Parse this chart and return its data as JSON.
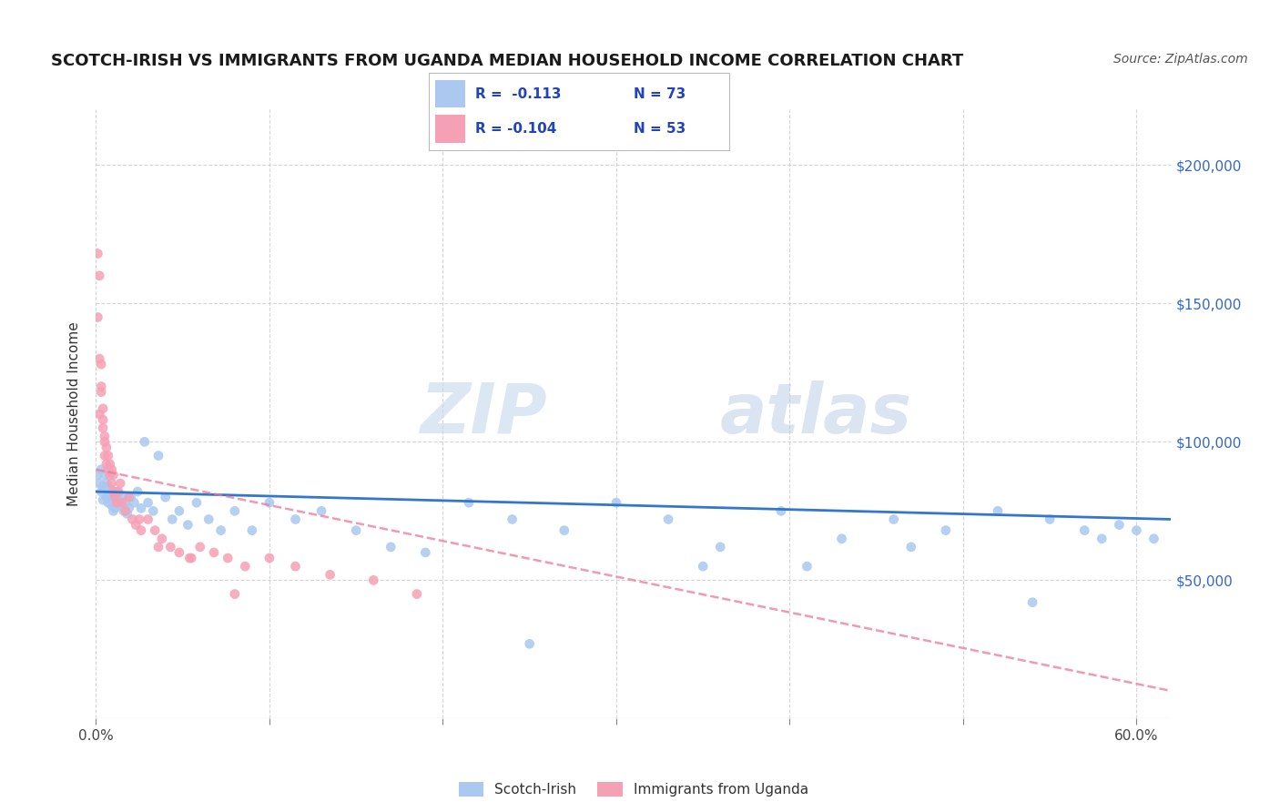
{
  "title": "SCOTCH-IRISH VS IMMIGRANTS FROM UGANDA MEDIAN HOUSEHOLD INCOME CORRELATION CHART",
  "source": "Source: ZipAtlas.com",
  "ylabel": "Median Household Income",
  "y_ticks": [
    50000,
    100000,
    150000,
    200000
  ],
  "y_tick_labels": [
    "$50,000",
    "$100,000",
    "$150,000",
    "$200,000"
  ],
  "xlim": [
    0.0,
    0.62
  ],
  "ylim": [
    0,
    220000
  ],
  "watermark_zip": "ZIP",
  "watermark_atlas": "atlas",
  "legend_r1": "R =  -0.113",
  "legend_n1": "N = 73",
  "legend_r2": "R = -0.104",
  "legend_n2": "N = 53",
  "series1_color": "#aac8f0",
  "series2_color": "#f5a0b5",
  "trendline1_color": "#3377cc",
  "trendline2_color": "#ee7799",
  "background_color": "#ffffff",
  "grid_color": "#cccccc",
  "scotch_irish_x": [
    0.001,
    0.002,
    0.003,
    0.003,
    0.004,
    0.004,
    0.005,
    0.005,
    0.006,
    0.006,
    0.007,
    0.007,
    0.008,
    0.008,
    0.009,
    0.009,
    0.01,
    0.01,
    0.011,
    0.011,
    0.012,
    0.013,
    0.014,
    0.015,
    0.016,
    0.017,
    0.018,
    0.019,
    0.02,
    0.022,
    0.024,
    0.026,
    0.028,
    0.03,
    0.033,
    0.036,
    0.04,
    0.044,
    0.048,
    0.053,
    0.058,
    0.065,
    0.072,
    0.08,
    0.09,
    0.1,
    0.115,
    0.13,
    0.15,
    0.17,
    0.19,
    0.215,
    0.24,
    0.27,
    0.3,
    0.33,
    0.36,
    0.395,
    0.43,
    0.46,
    0.49,
    0.52,
    0.55,
    0.57,
    0.58,
    0.59,
    0.6,
    0.61,
    0.25,
    0.35,
    0.41,
    0.47,
    0.54
  ],
  "scotch_irish_y": [
    88000,
    85000,
    90000,
    82000,
    84000,
    79000,
    83000,
    88000,
    80000,
    85000,
    82000,
    78000,
    83000,
    80000,
    77000,
    81000,
    75000,
    78000,
    76000,
    80000,
    82000,
    79000,
    77000,
    80000,
    75000,
    78000,
    74000,
    76000,
    80000,
    78000,
    82000,
    76000,
    100000,
    78000,
    75000,
    95000,
    80000,
    72000,
    75000,
    70000,
    78000,
    72000,
    68000,
    75000,
    68000,
    78000,
    72000,
    75000,
    68000,
    62000,
    60000,
    78000,
    72000,
    68000,
    78000,
    72000,
    62000,
    75000,
    65000,
    72000,
    68000,
    75000,
    72000,
    68000,
    65000,
    70000,
    68000,
    65000,
    27000,
    55000,
    55000,
    62000,
    42000
  ],
  "uganda_x": [
    0.001,
    0.001,
    0.002,
    0.002,
    0.002,
    0.003,
    0.003,
    0.003,
    0.004,
    0.004,
    0.004,
    0.005,
    0.005,
    0.005,
    0.006,
    0.006,
    0.007,
    0.007,
    0.008,
    0.008,
    0.009,
    0.009,
    0.01,
    0.01,
    0.011,
    0.012,
    0.013,
    0.014,
    0.015,
    0.017,
    0.019,
    0.021,
    0.023,
    0.026,
    0.03,
    0.034,
    0.038,
    0.043,
    0.048,
    0.054,
    0.06,
    0.068,
    0.076,
    0.086,
    0.1,
    0.115,
    0.135,
    0.16,
    0.185,
    0.025,
    0.036,
    0.055,
    0.08
  ],
  "uganda_y": [
    145000,
    168000,
    110000,
    130000,
    160000,
    120000,
    128000,
    118000,
    108000,
    112000,
    105000,
    100000,
    95000,
    102000,
    98000,
    92000,
    90000,
    95000,
    88000,
    92000,
    85000,
    90000,
    82000,
    88000,
    80000,
    78000,
    82000,
    85000,
    78000,
    75000,
    80000,
    72000,
    70000,
    68000,
    72000,
    68000,
    65000,
    62000,
    60000,
    58000,
    62000,
    60000,
    58000,
    55000,
    58000,
    55000,
    52000,
    50000,
    45000,
    72000,
    62000,
    58000,
    45000
  ],
  "trendline1_x_start": 0.0,
  "trendline1_x_end": 0.62,
  "trendline2_x_start": 0.0,
  "trendline2_x_end": 0.62
}
